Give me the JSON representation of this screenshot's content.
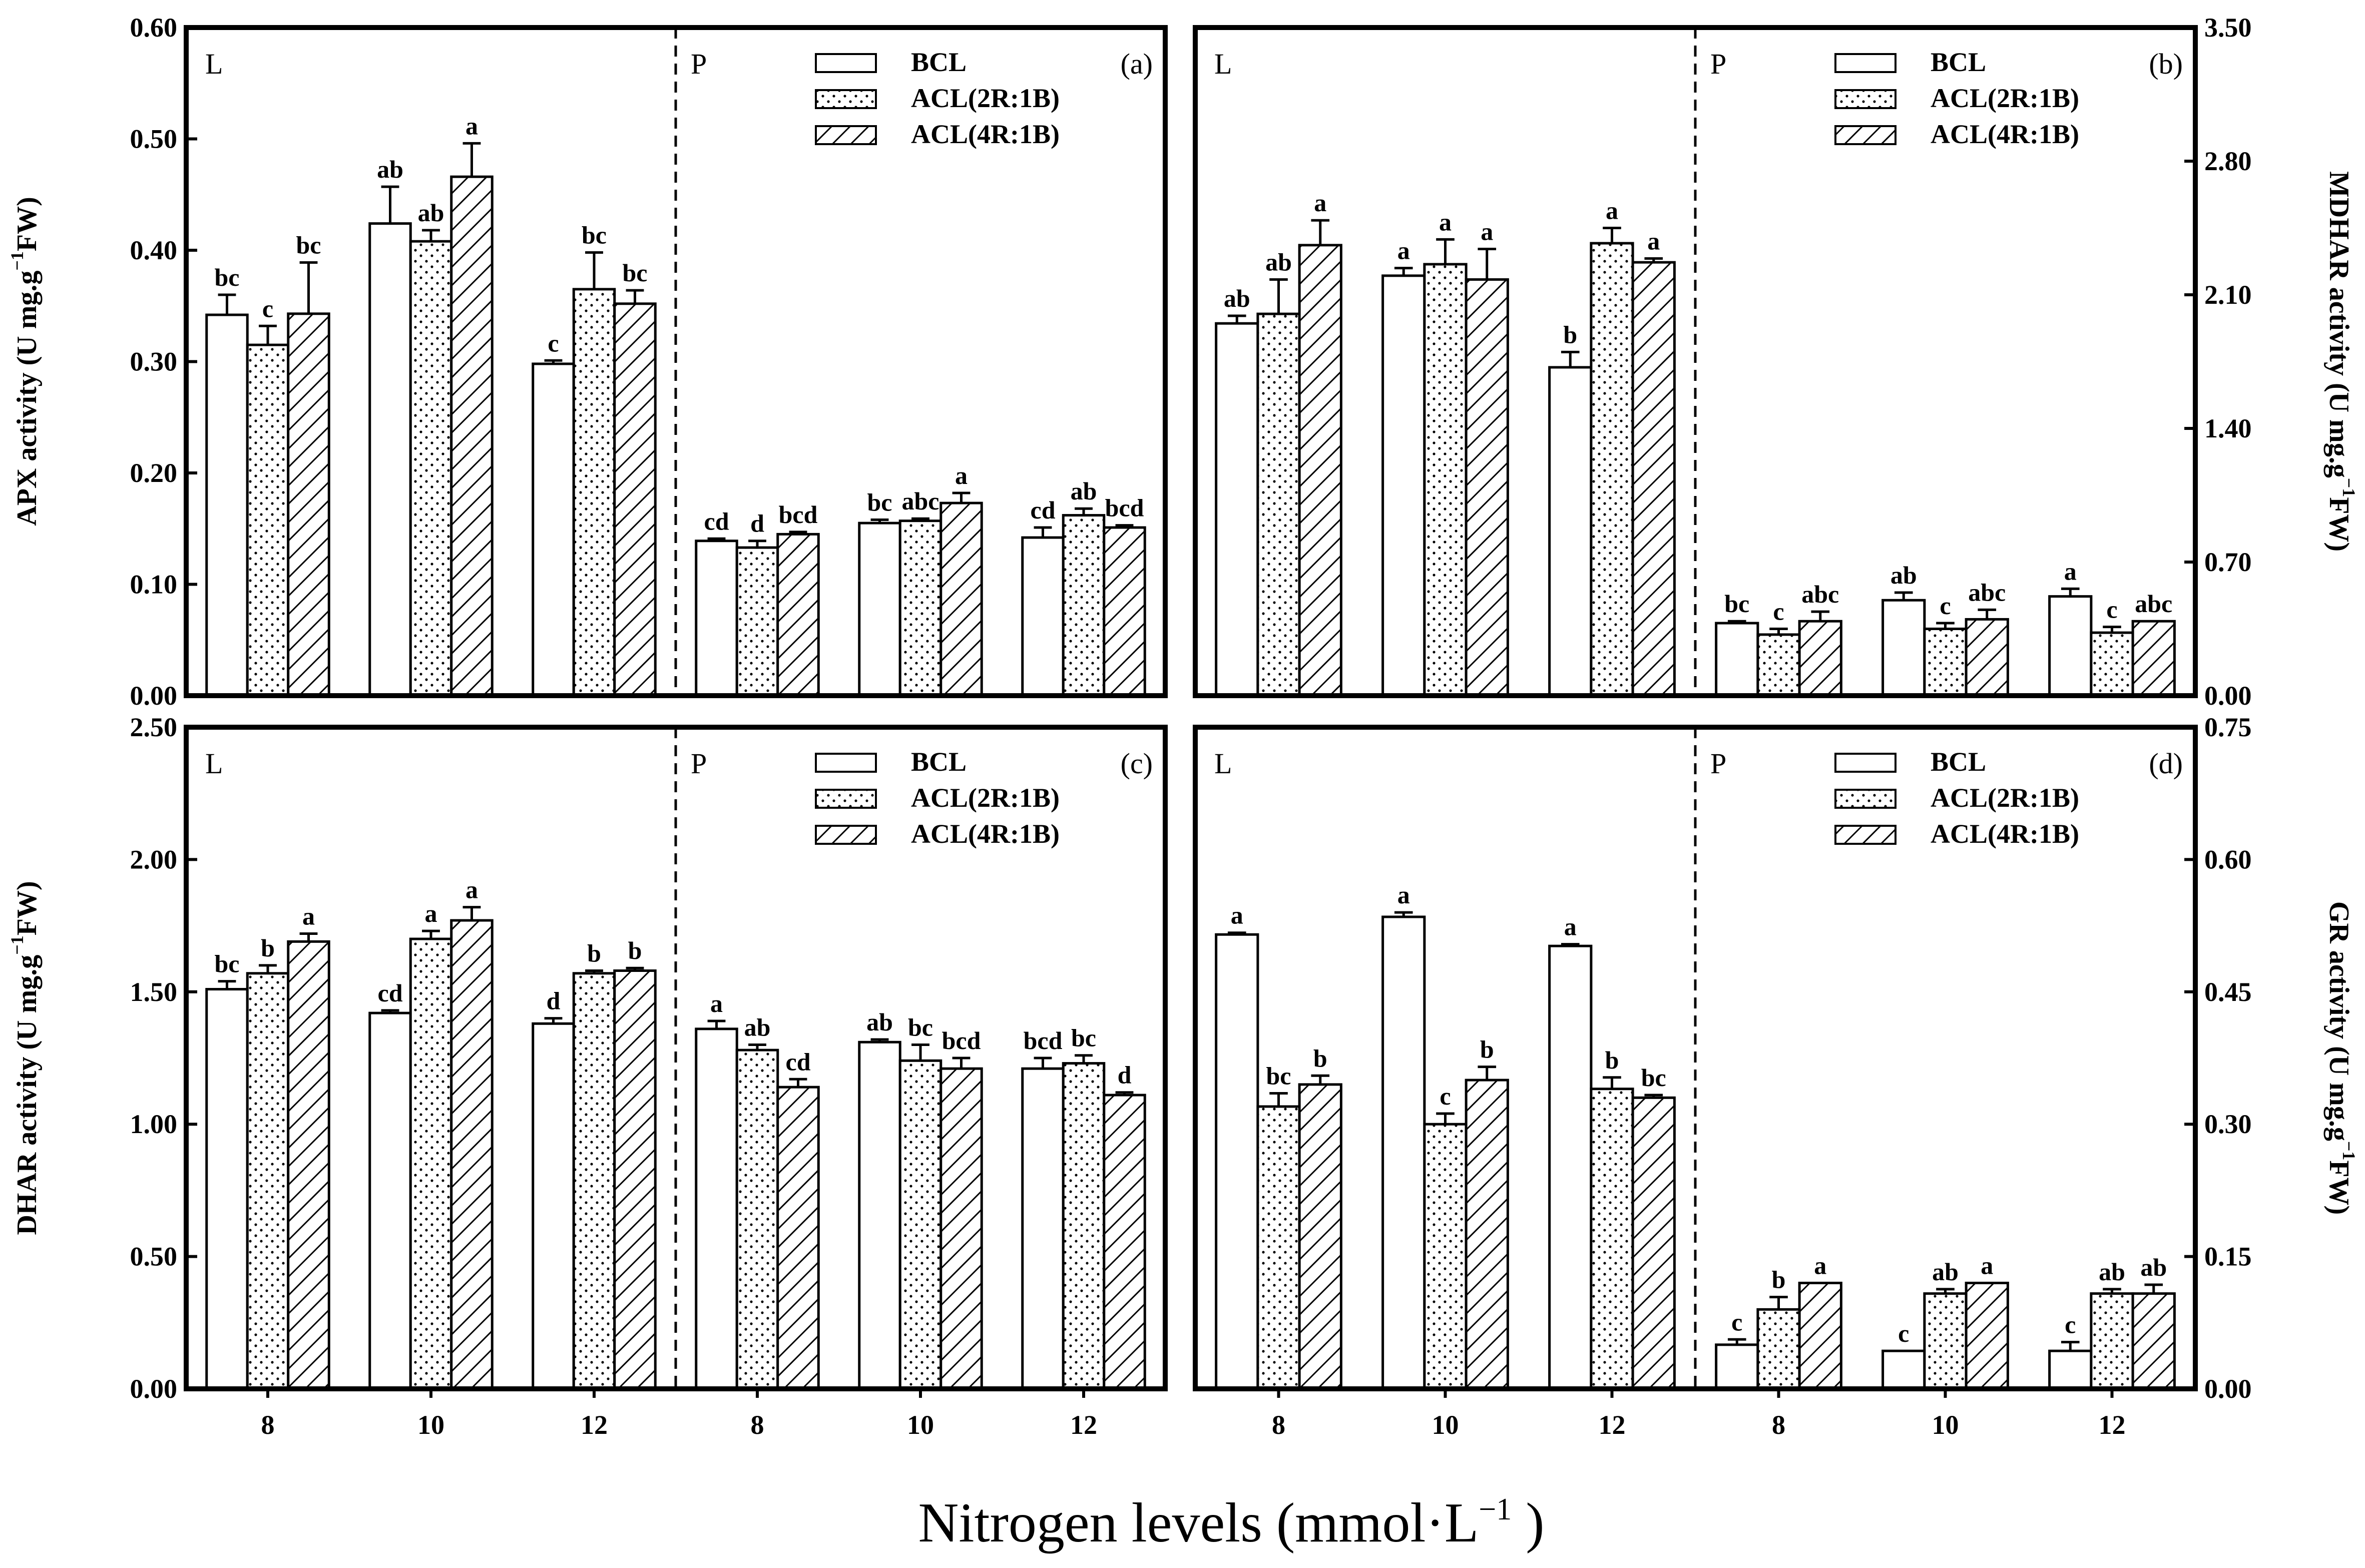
{
  "figure": {
    "x_axis_title_main": "Nitrogen levels (mmol·L",
    "x_axis_title_sup": "−1",
    "x_axis_title_end": " )",
    "legend": [
      "BCL",
      "ACL(2R:1B)",
      "ACL(4R:1B)"
    ],
    "region_labels": [
      "L",
      "P"
    ],
    "colors": {
      "axis": "#000000",
      "bar_fill": "#ffffff",
      "dot": "#000000"
    }
  },
  "chart_data": [
    {
      "type": "bar",
      "panel_label": "(a)",
      "ylabel_parts": [
        "APX",
        "activity (U mg.g",
        "−1",
        "FW)"
      ],
      "y_axis_side": "left",
      "ylim": [
        0,
        0.6
      ],
      "yticks": [
        "0.00",
        "0.10",
        "0.20",
        "0.30",
        "0.40",
        "0.50",
        "0.60"
      ],
      "categories": [
        "8",
        "10",
        "12",
        "8",
        "10",
        "12"
      ],
      "series": [
        {
          "name": "BCL",
          "values": [
            0.342,
            0.424,
            0.298,
            0.139,
            0.155,
            0.142
          ],
          "errors": [
            0.018,
            0.033,
            0.003,
            0.002,
            0.003,
            0.009
          ],
          "letters": [
            "bc",
            "ab",
            "c",
            "cd",
            "bc",
            "cd"
          ]
        },
        {
          "name": "ACL(2R:1B)",
          "values": [
            0.315,
            0.408,
            0.365,
            0.133,
            0.157,
            0.162
          ],
          "errors": [
            0.017,
            0.01,
            0.033,
            0.006,
            0.002,
            0.006
          ],
          "letters": [
            "c",
            "ab",
            "bc",
            "d",
            "abc",
            "ab"
          ]
        },
        {
          "name": "ACL(4R:1B)",
          "values": [
            0.343,
            0.466,
            0.352,
            0.145,
            0.173,
            0.151
          ],
          "errors": [
            0.046,
            0.03,
            0.012,
            0.002,
            0.009,
            0.002
          ],
          "letters": [
            "bc",
            "a",
            "bc",
            "bcd",
            "a",
            "bcd"
          ]
        }
      ]
    },
    {
      "type": "bar",
      "panel_label": "(b)",
      "ylabel_parts": [
        "MDHAR",
        "activity (U mg.g",
        "−1",
        "FW)"
      ],
      "y_axis_side": "right",
      "ylim": [
        0,
        3.5
      ],
      "yticks": [
        "0.00",
        "0.70",
        "1.40",
        "2.10",
        "2.80",
        "3.50"
      ],
      "categories": [
        "8",
        "10",
        "12",
        "8",
        "10",
        "12"
      ],
      "series": [
        {
          "name": "BCL",
          "values": [
            1.95,
            2.2,
            1.72,
            0.38,
            0.5,
            0.52
          ],
          "errors": [
            0.04,
            0.04,
            0.08,
            0.01,
            0.04,
            0.04
          ],
          "letters": [
            "ab",
            "a",
            "b",
            "bc",
            "ab",
            "a"
          ]
        },
        {
          "name": "ACL(2R:1B)",
          "values": [
            2.0,
            2.26,
            2.37,
            0.32,
            0.35,
            0.33
          ],
          "errors": [
            0.18,
            0.13,
            0.08,
            0.03,
            0.03,
            0.03
          ],
          "letters": [
            "ab",
            "a",
            "a",
            "c",
            "c",
            "c"
          ]
        },
        {
          "name": "ACL(4R:1B)",
          "values": [
            2.36,
            2.18,
            2.27,
            0.39,
            0.4,
            0.39
          ],
          "errors": [
            0.13,
            0.16,
            0.02,
            0.05,
            0.05,
            0.0
          ],
          "letters": [
            "a",
            "a",
            "a",
            "abc",
            "abc",
            "abc"
          ]
        }
      ]
    },
    {
      "type": "bar",
      "panel_label": "(c)",
      "ylabel_parts": [
        "DHAR",
        "activity (U mg.g",
        "−1",
        "FW)"
      ],
      "y_axis_side": "left",
      "ylim": [
        0,
        2.5
      ],
      "yticks": [
        "0.00",
        "0.50",
        "1.00",
        "1.50",
        "2.00",
        "2.50"
      ],
      "categories": [
        "8",
        "10",
        "12",
        "8",
        "10",
        "12"
      ],
      "series": [
        {
          "name": "BCL",
          "values": [
            1.51,
            1.42,
            1.38,
            1.36,
            1.31,
            1.21
          ],
          "errors": [
            0.03,
            0.01,
            0.02,
            0.03,
            0.01,
            0.04
          ],
          "letters": [
            "bc",
            "cd",
            "d",
            "a",
            "ab",
            "bcd"
          ]
        },
        {
          "name": "ACL(2R:1B)",
          "values": [
            1.57,
            1.7,
            1.57,
            1.28,
            1.24,
            1.23
          ],
          "errors": [
            0.03,
            0.03,
            0.01,
            0.02,
            0.06,
            0.03
          ],
          "letters": [
            "b",
            "a",
            "b",
            "ab",
            "bc",
            "bc"
          ]
        },
        {
          "name": "ACL(4R:1B)",
          "values": [
            1.69,
            1.77,
            1.58,
            1.14,
            1.21,
            1.11
          ],
          "errors": [
            0.03,
            0.05,
            0.01,
            0.03,
            0.04,
            0.01
          ],
          "letters": [
            "a",
            "a",
            "b",
            "cd",
            "bcd",
            "d"
          ]
        }
      ]
    },
    {
      "type": "bar",
      "panel_label": "(d)",
      "ylabel_parts": [
        "GR",
        "activity (U mg.g",
        "−1",
        "FW)"
      ],
      "y_axis_side": "right",
      "ylim": [
        0,
        0.75
      ],
      "yticks": [
        "0.00",
        "0.15",
        "0.30",
        "0.45",
        "0.60",
        "0.75"
      ],
      "categories": [
        "8",
        "10",
        "12",
        "8",
        "10",
        "12"
      ],
      "series": [
        {
          "name": "BCL",
          "values": [
            0.515,
            0.535,
            0.502,
            0.05,
            0.043,
            0.043
          ],
          "errors": [
            0.002,
            0.005,
            0.002,
            0.006,
            0.0,
            0.01
          ],
          "letters": [
            "a",
            "a",
            "a",
            "c",
            "c",
            "c"
          ]
        },
        {
          "name": "ACL(2R:1B)",
          "values": [
            0.32,
            0.3,
            0.34,
            0.09,
            0.108,
            0.108
          ],
          "errors": [
            0.015,
            0.012,
            0.013,
            0.014,
            0.005,
            0.005
          ],
          "letters": [
            "bc",
            "c",
            "b",
            "b",
            "ab",
            "ab"
          ]
        },
        {
          "name": "ACL(4R:1B)",
          "values": [
            0.345,
            0.35,
            0.33,
            0.12,
            0.12,
            0.108
          ],
          "errors": [
            0.01,
            0.015,
            0.003,
            0.0,
            0.0,
            0.01
          ],
          "letters": [
            "b",
            "b",
            "bc",
            "a",
            "a",
            "ab"
          ]
        }
      ]
    }
  ]
}
